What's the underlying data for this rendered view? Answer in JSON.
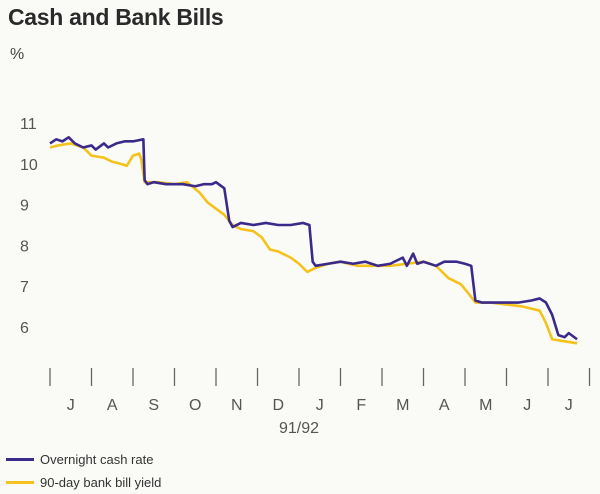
{
  "chart_data": {
    "type": "line",
    "title": "Cash and Bank Bills",
    "ylabel": "%",
    "xlabel": "91/92",
    "ylim": [
      5,
      11.5
    ],
    "xlim": [
      0,
      13
    ],
    "yticks": [
      6,
      7,
      8,
      9,
      10,
      11
    ],
    "categories": [
      "J",
      "A",
      "S",
      "O",
      "N",
      "D",
      "J",
      "F",
      "M",
      "A",
      "M",
      "J",
      "J"
    ],
    "series": [
      {
        "name": "Overnight cash rate",
        "color": "#3b2a8a",
        "points": [
          [
            0,
            10.5
          ],
          [
            0.15,
            10.6
          ],
          [
            0.3,
            10.55
          ],
          [
            0.45,
            10.65
          ],
          [
            0.6,
            10.5
          ],
          [
            0.8,
            10.4
          ],
          [
            1.0,
            10.45
          ],
          [
            1.1,
            10.35
          ],
          [
            1.3,
            10.5
          ],
          [
            1.4,
            10.4
          ],
          [
            1.6,
            10.5
          ],
          [
            1.8,
            10.55
          ],
          [
            2.0,
            10.55
          ],
          [
            2.25,
            10.6
          ],
          [
            2.28,
            9.6
          ],
          [
            2.35,
            9.5
          ],
          [
            2.5,
            9.55
          ],
          [
            2.8,
            9.5
          ],
          [
            3.2,
            9.5
          ],
          [
            3.5,
            9.45
          ],
          [
            3.7,
            9.5
          ],
          [
            3.9,
            9.5
          ],
          [
            4.0,
            9.55
          ],
          [
            4.2,
            9.4
          ],
          [
            4.32,
            8.6
          ],
          [
            4.4,
            8.45
          ],
          [
            4.6,
            8.55
          ],
          [
            4.9,
            8.5
          ],
          [
            5.2,
            8.55
          ],
          [
            5.5,
            8.5
          ],
          [
            5.8,
            8.5
          ],
          [
            6.1,
            8.55
          ],
          [
            6.25,
            8.5
          ],
          [
            6.33,
            7.6
          ],
          [
            6.4,
            7.5
          ],
          [
            6.7,
            7.55
          ],
          [
            7.0,
            7.6
          ],
          [
            7.3,
            7.55
          ],
          [
            7.6,
            7.6
          ],
          [
            7.9,
            7.5
          ],
          [
            8.2,
            7.55
          ],
          [
            8.5,
            7.7
          ],
          [
            8.6,
            7.5
          ],
          [
            8.75,
            7.8
          ],
          [
            8.85,
            7.55
          ],
          [
            9.0,
            7.6
          ],
          [
            9.3,
            7.5
          ],
          [
            9.5,
            7.6
          ],
          [
            9.8,
            7.6
          ],
          [
            10.0,
            7.55
          ],
          [
            10.15,
            7.5
          ],
          [
            10.25,
            6.65
          ],
          [
            10.4,
            6.6
          ],
          [
            10.7,
            6.6
          ],
          [
            11.0,
            6.6
          ],
          [
            11.3,
            6.6
          ],
          [
            11.6,
            6.65
          ],
          [
            11.8,
            6.7
          ],
          [
            11.95,
            6.6
          ],
          [
            12.1,
            6.3
          ],
          [
            12.25,
            5.8
          ],
          [
            12.4,
            5.75
          ],
          [
            12.5,
            5.85
          ],
          [
            12.7,
            5.7
          ]
        ]
      },
      {
        "name": "90-day bank bill yield",
        "color": "#f5c21c",
        "points": [
          [
            0,
            10.4
          ],
          [
            0.2,
            10.45
          ],
          [
            0.5,
            10.5
          ],
          [
            0.8,
            10.4
          ],
          [
            1.0,
            10.2
          ],
          [
            1.3,
            10.15
          ],
          [
            1.5,
            10.05
          ],
          [
            1.7,
            10.0
          ],
          [
            1.85,
            9.95
          ],
          [
            2.0,
            10.2
          ],
          [
            2.15,
            10.25
          ],
          [
            2.2,
            10.1
          ],
          [
            2.28,
            9.55
          ],
          [
            2.6,
            9.55
          ],
          [
            3.0,
            9.5
          ],
          [
            3.3,
            9.55
          ],
          [
            3.6,
            9.3
          ],
          [
            3.8,
            9.05
          ],
          [
            4.0,
            8.9
          ],
          [
            4.2,
            8.75
          ],
          [
            4.4,
            8.5
          ],
          [
            4.6,
            8.4
          ],
          [
            4.9,
            8.35
          ],
          [
            5.1,
            8.2
          ],
          [
            5.3,
            7.9
          ],
          [
            5.5,
            7.85
          ],
          [
            5.8,
            7.7
          ],
          [
            6.0,
            7.55
          ],
          [
            6.2,
            7.35
          ],
          [
            6.4,
            7.45
          ],
          [
            6.7,
            7.55
          ],
          [
            7.0,
            7.6
          ],
          [
            7.4,
            7.5
          ],
          [
            7.8,
            7.5
          ],
          [
            8.2,
            7.5
          ],
          [
            8.6,
            7.55
          ],
          [
            9.0,
            7.6
          ],
          [
            9.3,
            7.5
          ],
          [
            9.6,
            7.2
          ],
          [
            9.9,
            7.05
          ],
          [
            10.1,
            6.8
          ],
          [
            10.25,
            6.6
          ],
          [
            10.6,
            6.6
          ],
          [
            11.0,
            6.55
          ],
          [
            11.4,
            6.5
          ],
          [
            11.8,
            6.4
          ],
          [
            11.95,
            6.1
          ],
          [
            12.1,
            5.7
          ],
          [
            12.4,
            5.65
          ],
          [
            12.7,
            5.6
          ]
        ]
      }
    ]
  }
}
